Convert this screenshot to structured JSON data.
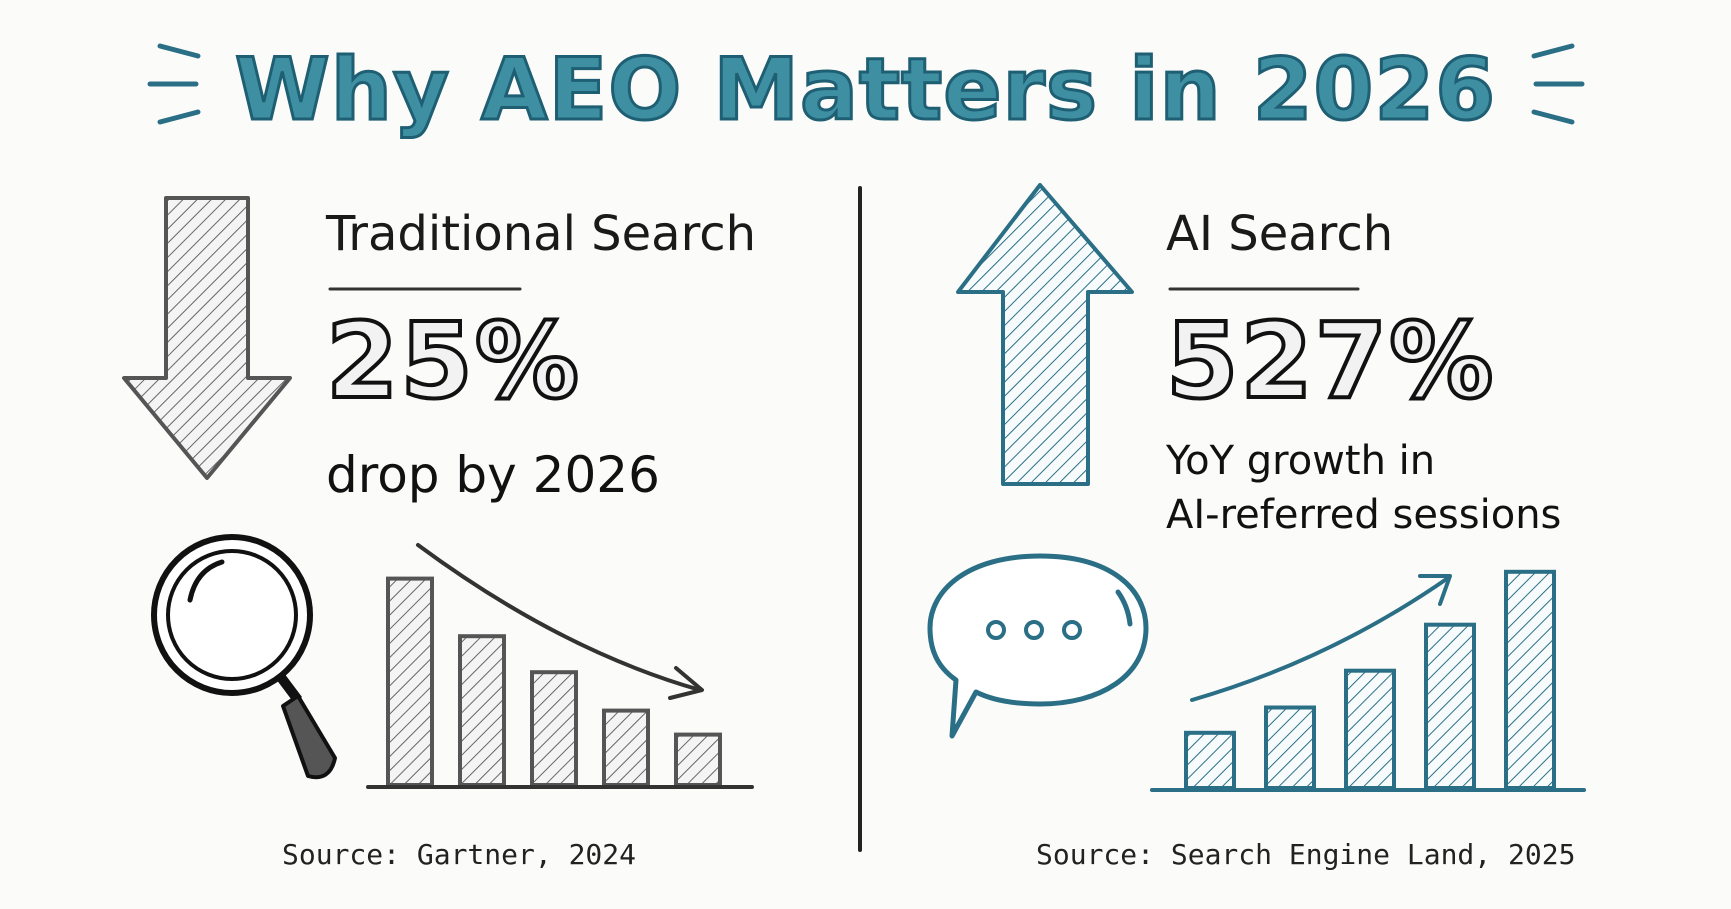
{
  "title": "Why AEO Matters in 2026",
  "left": {
    "heading": "Traditional Search",
    "stat": "25%",
    "caption": "drop by 2026",
    "source": "Source: Gartner, 2024",
    "trend_bars": [
      0.86,
      0.62,
      0.47,
      0.31,
      0.21
    ],
    "color": "#555555",
    "icons": [
      "down-arrow-icon",
      "magnifying-glass-icon",
      "declining-bars-icon"
    ]
  },
  "right": {
    "heading": "AI Search",
    "stat": "527%",
    "caption_line1": "YoY growth in",
    "caption_line2": "AI-referred sessions",
    "source": "Source: Search Engine Land, 2025",
    "trend_bars": [
      0.24,
      0.35,
      0.51,
      0.71,
      0.94
    ],
    "color": "#2a6f86",
    "icons": [
      "up-arrow-icon",
      "chat-bubble-icon",
      "rising-bars-icon"
    ]
  },
  "colors": {
    "title": "#3f8fa3",
    "accent": "#2a6f86",
    "ink": "#111111"
  }
}
